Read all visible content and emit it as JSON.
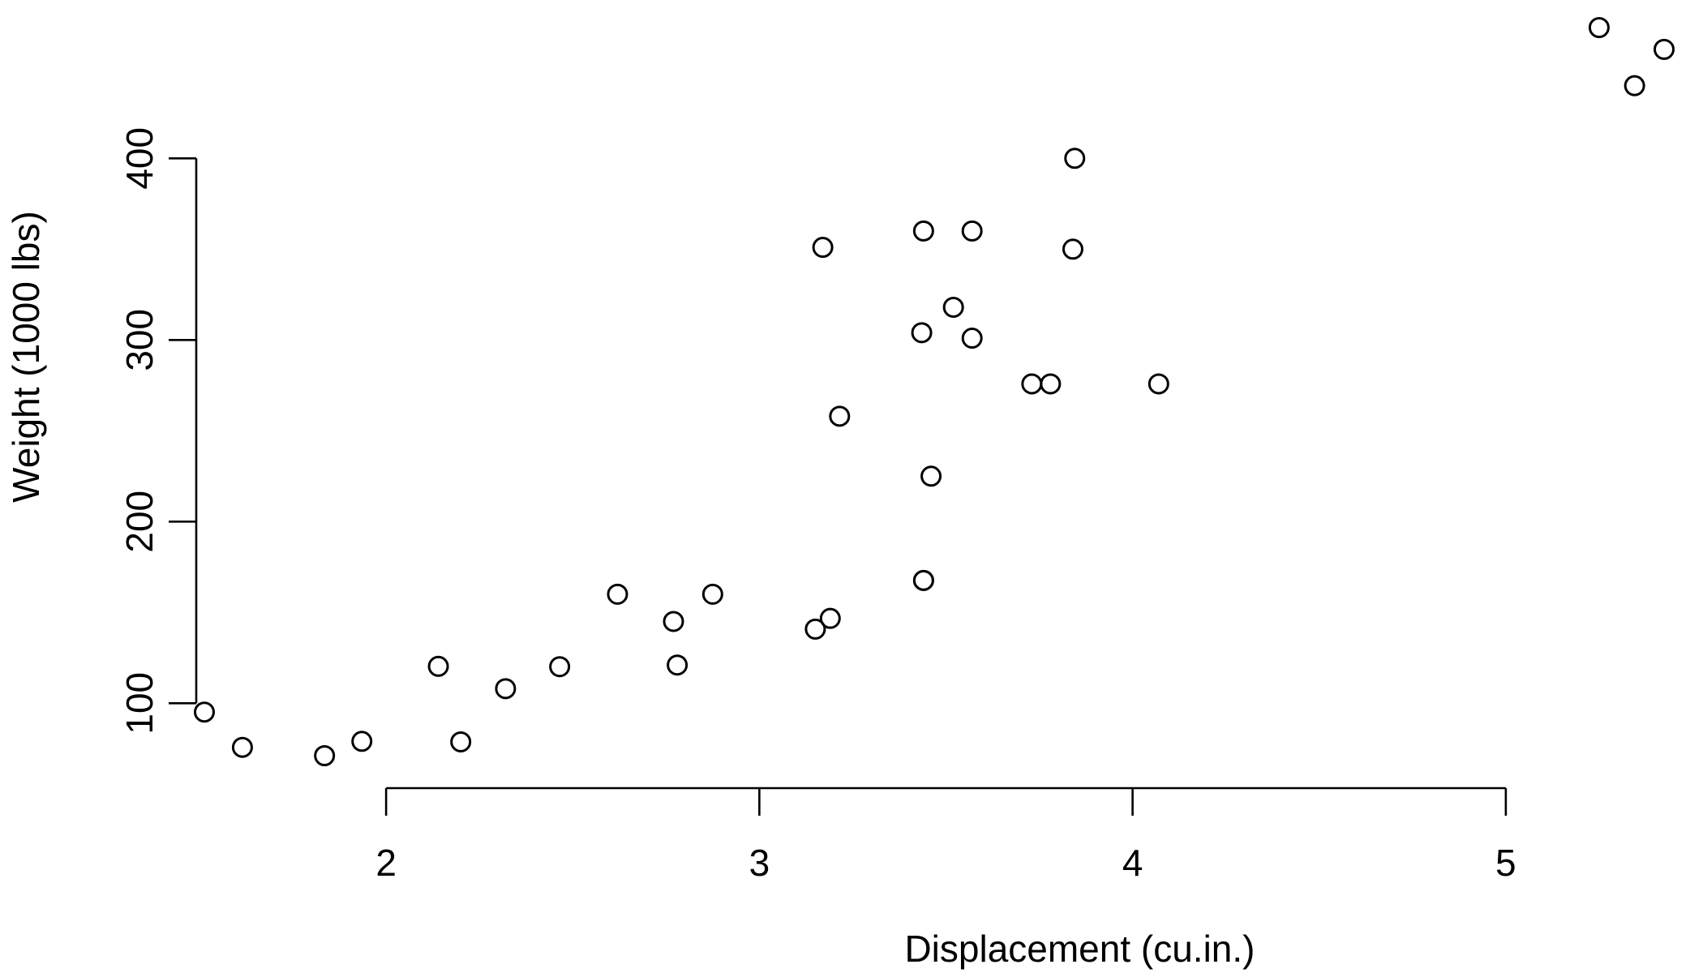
{
  "chart_data": {
    "type": "scatter",
    "title": "",
    "xlabel": "Displacement (cu.in.)",
    "ylabel": "Weight (1000 lbs)",
    "xlim": [
      1.5,
      5.424
    ],
    "ylim": [
      71.1,
      472
    ],
    "xticks": [
      2,
      3,
      4,
      5
    ],
    "yticks": [
      100,
      200,
      300,
      400
    ],
    "grid": false,
    "points": [
      {
        "x": 2.62,
        "y": 160
      },
      {
        "x": 2.875,
        "y": 160
      },
      {
        "x": 2.32,
        "y": 108
      },
      {
        "x": 3.215,
        "y": 258
      },
      {
        "x": 3.44,
        "y": 360
      },
      {
        "x": 3.46,
        "y": 225
      },
      {
        "x": 3.57,
        "y": 360
      },
      {
        "x": 3.19,
        "y": 146.7
      },
      {
        "x": 3.15,
        "y": 140.8
      },
      {
        "x": 3.44,
        "y": 167.6
      },
      {
        "x": 3.44,
        "y": 167.6
      },
      {
        "x": 4.07,
        "y": 275.8
      },
      {
        "x": 3.73,
        "y": 275.8
      },
      {
        "x": 3.78,
        "y": 275.8
      },
      {
        "x": 5.25,
        "y": 472
      },
      {
        "x": 5.424,
        "y": 460
      },
      {
        "x": 5.345,
        "y": 440
      },
      {
        "x": 2.2,
        "y": 78.7
      },
      {
        "x": 1.615,
        "y": 75.7
      },
      {
        "x": 1.835,
        "y": 71.1
      },
      {
        "x": 2.465,
        "y": 120.1
      },
      {
        "x": 3.52,
        "y": 318
      },
      {
        "x": 3.435,
        "y": 304
      },
      {
        "x": 3.84,
        "y": 350
      },
      {
        "x": 3.845,
        "y": 400
      },
      {
        "x": 1.935,
        "y": 79
      },
      {
        "x": 2.14,
        "y": 120.3
      },
      {
        "x": 1.513,
        "y": 95.1
      },
      {
        "x": 3.17,
        "y": 351
      },
      {
        "x": 2.77,
        "y": 145
      },
      {
        "x": 3.57,
        "y": 301
      },
      {
        "x": 2.78,
        "y": 121
      }
    ]
  }
}
